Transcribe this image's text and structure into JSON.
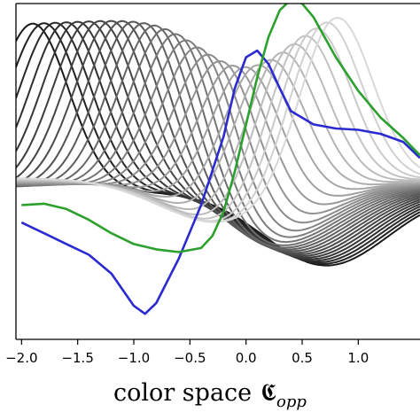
{
  "chart_data": {
    "type": "line",
    "xlabel": "color space",
    "xlabel_symbol": "𝕮",
    "xlabel_subscript": "opp",
    "xlim": [
      -2.05,
      1.55
    ],
    "ylim": [
      -1.15,
      1.35
    ],
    "x_ticks": [
      -2.0,
      -1.5,
      -1.0,
      -0.5,
      0.0,
      0.5,
      1.0
    ],
    "x_tick_labels": [
      "−2.0",
      "−1.5",
      "−1.0",
      "−0.5",
      "0.0",
      "0.5",
      "1.0"
    ],
    "grid": false,
    "legend": "none",
    "basis_family": {
      "description_color_ramp": "dark to light gray",
      "count": 28,
      "peak_centers_start": -1.9,
      "peak_centers_step": 0.1,
      "colors": [
        "#1a1a1a",
        "#d8d8d8"
      ]
    },
    "series": [
      {
        "color": "#2a2ad0",
        "x": [
          -2.0,
          -1.8,
          -1.6,
          -1.4,
          -1.2,
          -1.0,
          -0.9,
          -0.8,
          -0.6,
          -0.4,
          -0.2,
          -0.1,
          0.0,
          0.1,
          0.2,
          0.3,
          0.4,
          0.6,
          0.8,
          1.0,
          1.2,
          1.4,
          1.55
        ],
        "y": [
          -0.28,
          -0.36,
          -0.44,
          -0.52,
          -0.66,
          -0.9,
          -0.96,
          -0.88,
          -0.55,
          -0.15,
          0.36,
          0.72,
          0.95,
          1.0,
          0.9,
          0.72,
          0.55,
          0.45,
          0.42,
          0.41,
          0.38,
          0.32,
          0.2
        ]
      },
      {
        "color": "#2ca02c",
        "x": [
          -2.0,
          -1.8,
          -1.6,
          -1.4,
          -1.2,
          -1.0,
          -0.8,
          -0.6,
          -0.4,
          -0.3,
          -0.2,
          -0.1,
          0.0,
          0.1,
          0.2,
          0.3,
          0.4,
          0.5,
          0.6,
          0.8,
          1.0,
          1.2,
          1.4,
          1.55
        ],
        "y": [
          -0.15,
          -0.14,
          -0.18,
          -0.26,
          -0.36,
          -0.44,
          -0.48,
          -0.5,
          -0.47,
          -0.38,
          -0.2,
          0.1,
          0.45,
          0.8,
          1.1,
          1.3,
          1.38,
          1.35,
          1.25,
          0.95,
          0.7,
          0.5,
          0.35,
          0.22
        ]
      }
    ]
  }
}
